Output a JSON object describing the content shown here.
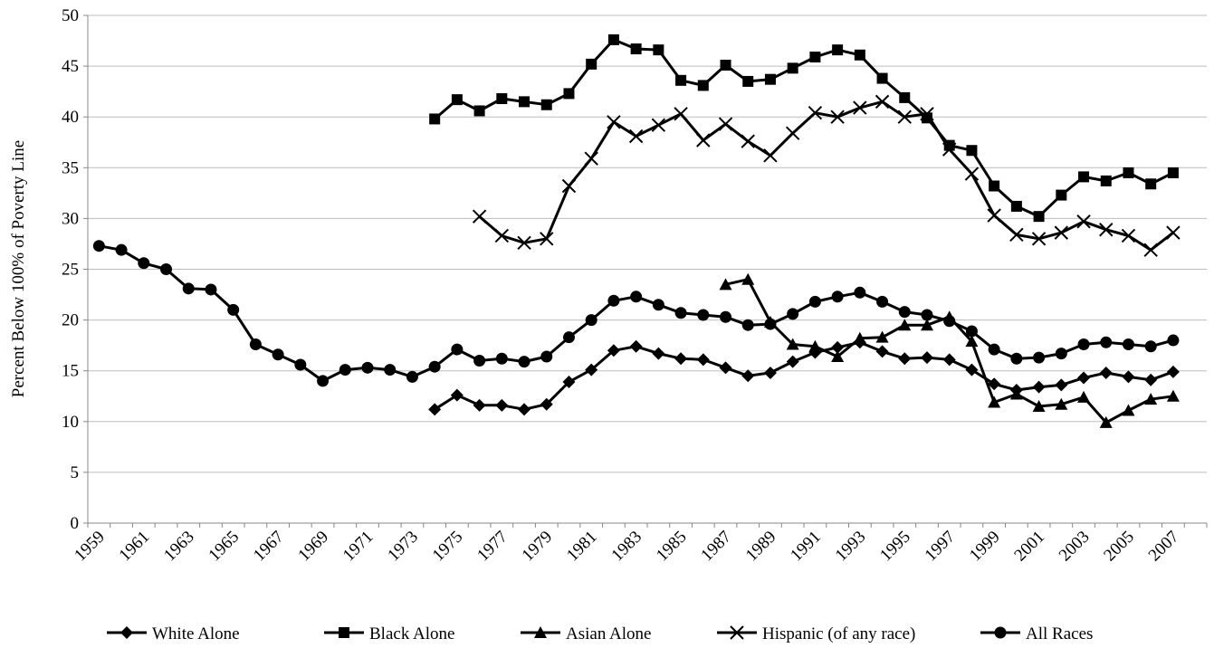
{
  "chart_data": {
    "type": "line",
    "title": "",
    "xlabel": "",
    "ylabel": "Percent Below 100% of Poverty Line",
    "ylim": [
      0,
      50
    ],
    "yticks": [
      0,
      5,
      10,
      15,
      20,
      25,
      30,
      35,
      40,
      45,
      50
    ],
    "x_range": [
      1959,
      2008
    ],
    "xticks": [
      1959,
      1961,
      1963,
      1965,
      1967,
      1969,
      1971,
      1973,
      1975,
      1977,
      1979,
      1981,
      1983,
      1985,
      1987,
      1989,
      1991,
      1993,
      1995,
      1997,
      1999,
      2001,
      2003,
      2005,
      2007
    ],
    "grid": "horizontal",
    "legend_position": "bottom",
    "series": [
      {
        "name": "White Alone",
        "marker": "diamond",
        "x": [
          1974,
          1975,
          1976,
          1977,
          1978,
          1979,
          1980,
          1981,
          1982,
          1983,
          1984,
          1985,
          1986,
          1987,
          1988,
          1989,
          1990,
          1991,
          1992,
          1993,
          1994,
          1995,
          1996,
          1997,
          1998,
          1999,
          2000,
          2001,
          2002,
          2003,
          2004,
          2005,
          2006,
          2007
        ],
        "values": [
          11.2,
          12.6,
          11.6,
          11.6,
          11.2,
          11.7,
          13.9,
          15.1,
          17.0,
          17.4,
          16.7,
          16.2,
          16.1,
          15.3,
          14.5,
          14.8,
          15.9,
          16.8,
          17.3,
          17.8,
          16.9,
          16.2,
          16.3,
          16.1,
          15.1,
          13.7,
          13.1,
          13.4,
          13.6,
          14.3,
          14.8,
          14.4,
          14.1,
          14.9
        ]
      },
      {
        "name": "Black Alone",
        "marker": "square",
        "x": [
          1974,
          1975,
          1976,
          1977,
          1978,
          1979,
          1980,
          1981,
          1982,
          1983,
          1984,
          1985,
          1986,
          1987,
          1988,
          1989,
          1990,
          1991,
          1992,
          1993,
          1994,
          1995,
          1996,
          1997,
          1998,
          1999,
          2000,
          2001,
          2002,
          2003,
          2004,
          2005,
          2006,
          2007
        ],
        "values": [
          39.8,
          41.7,
          40.6,
          41.8,
          41.5,
          41.2,
          42.3,
          45.2,
          47.6,
          46.7,
          46.6,
          43.6,
          43.1,
          45.1,
          43.5,
          43.7,
          44.8,
          45.9,
          46.6,
          46.1,
          43.8,
          41.9,
          39.9,
          37.2,
          36.7,
          33.2,
          31.2,
          30.2,
          32.3,
          34.1,
          33.7,
          34.5,
          33.4,
          34.5
        ]
      },
      {
        "name": "Asian Alone",
        "marker": "triangle",
        "x": [
          1987,
          1988,
          1989,
          1990,
          1991,
          1992,
          1993,
          1994,
          1995,
          1996,
          1997,
          1998,
          1999,
          2000,
          2001,
          2002,
          2003,
          2004,
          2005,
          2006,
          2007
        ],
        "values": [
          23.5,
          24.0,
          19.8,
          17.6,
          17.4,
          16.4,
          18.2,
          18.3,
          19.5,
          19.5,
          20.3,
          17.9,
          11.9,
          12.7,
          11.5,
          11.7,
          12.4,
          9.9,
          11.1,
          12.2,
          12.5
        ]
      },
      {
        "name": "Hispanic (of any race)",
        "marker": "x",
        "x": [
          1976,
          1977,
          1978,
          1979,
          1980,
          1981,
          1982,
          1983,
          1984,
          1985,
          1986,
          1987,
          1988,
          1989,
          1990,
          1991,
          1992,
          1993,
          1994,
          1995,
          1996,
          1997,
          1998,
          1999,
          2000,
          2001,
          2002,
          2003,
          2004,
          2005,
          2006,
          2007
        ],
        "values": [
          30.2,
          28.3,
          27.6,
          28.0,
          33.2,
          35.9,
          39.5,
          38.1,
          39.2,
          40.3,
          37.7,
          39.3,
          37.6,
          36.2,
          38.4,
          40.4,
          40.0,
          40.9,
          41.5,
          40.0,
          40.3,
          36.8,
          34.4,
          30.3,
          28.4,
          28.0,
          28.6,
          29.7,
          28.9,
          28.3,
          26.9,
          28.6
        ]
      },
      {
        "name": "All Races",
        "marker": "circle",
        "x": [
          1959,
          1960,
          1961,
          1962,
          1963,
          1964,
          1965,
          1966,
          1967,
          1968,
          1969,
          1970,
          1971,
          1972,
          1973,
          1974,
          1975,
          1976,
          1977,
          1978,
          1979,
          1980,
          1981,
          1982,
          1983,
          1984,
          1985,
          1986,
          1987,
          1988,
          1989,
          1990,
          1991,
          1992,
          1993,
          1994,
          1995,
          1996,
          1997,
          1998,
          1999,
          2000,
          2001,
          2002,
          2003,
          2004,
          2005,
          2006,
          2007
        ],
        "values": [
          27.3,
          26.9,
          25.6,
          25.0,
          23.1,
          23.0,
          21.0,
          17.6,
          16.6,
          15.6,
          14.0,
          15.1,
          15.3,
          15.1,
          14.4,
          15.4,
          17.1,
          16.0,
          16.2,
          15.9,
          16.4,
          18.3,
          20.0,
          21.9,
          22.3,
          21.5,
          20.7,
          20.5,
          20.3,
          19.5,
          19.6,
          20.6,
          21.8,
          22.3,
          22.7,
          21.8,
          20.8,
          20.5,
          19.9,
          18.9,
          17.1,
          16.2,
          16.3,
          16.7,
          17.6,
          17.8,
          17.6,
          17.4,
          18.0
        ]
      }
    ]
  }
}
